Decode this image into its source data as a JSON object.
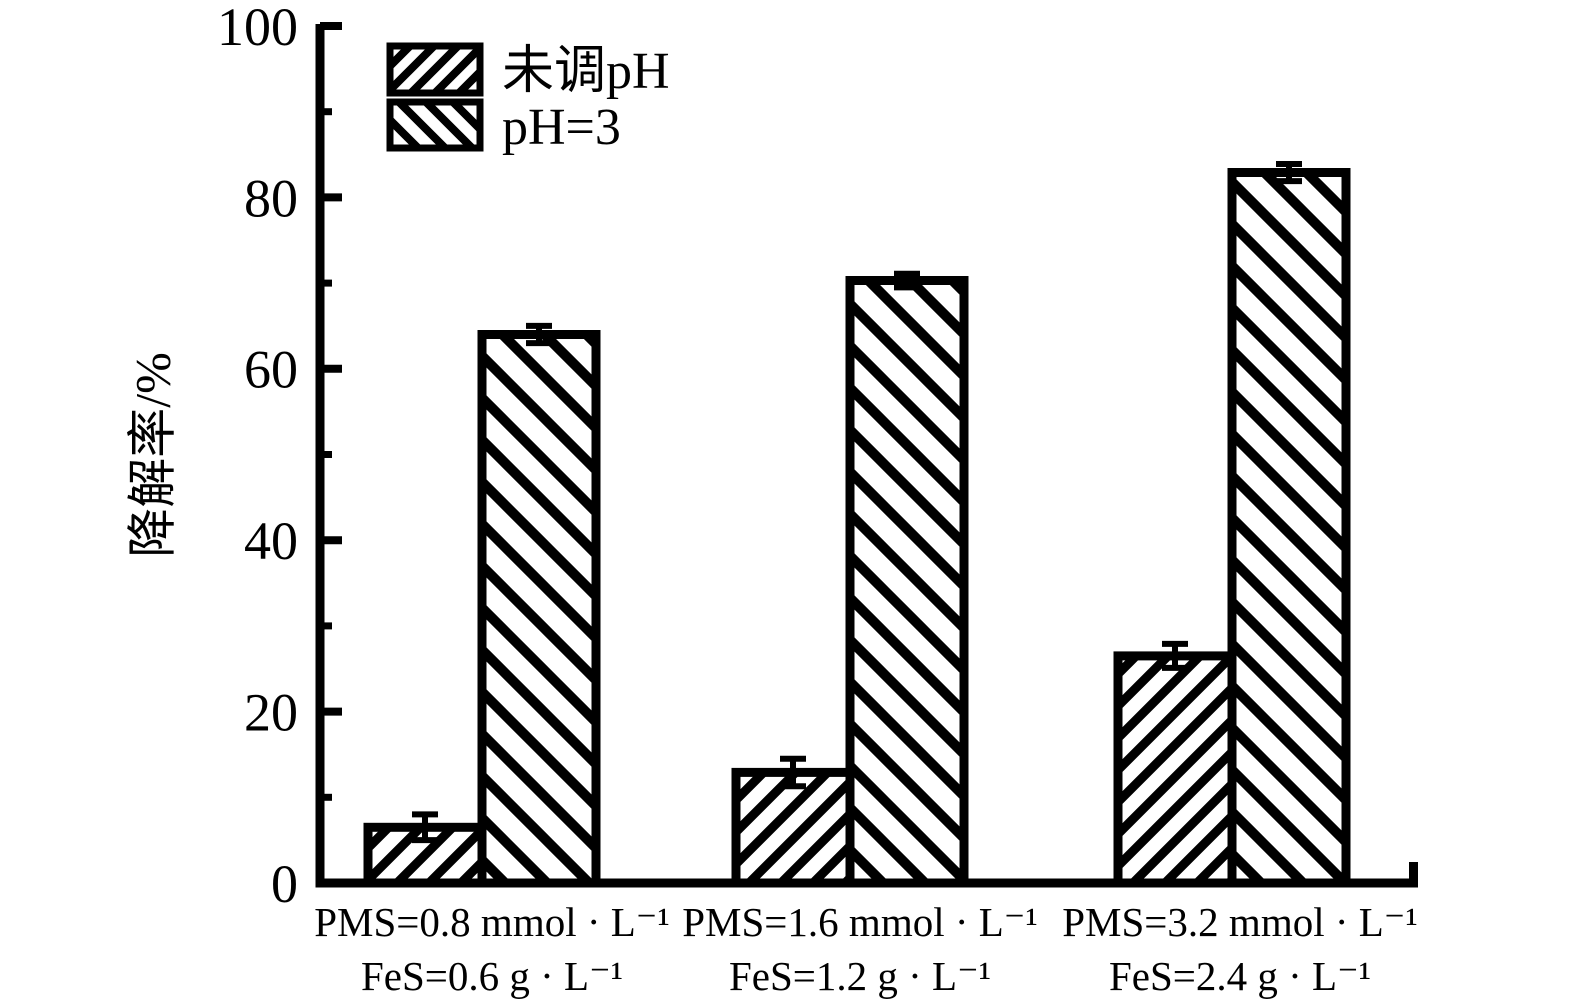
{
  "figure": {
    "background_color": "#ffffff",
    "ink_color": "#000000"
  },
  "chart_data": {
    "type": "bar",
    "ylabel": "降解率/%",
    "ylim": [
      0,
      100
    ],
    "y_major_ticks": [
      0,
      20,
      40,
      60,
      80,
      100
    ],
    "y_minor_ticks": [
      10,
      30,
      50,
      70,
      90
    ],
    "grid": "off",
    "legend_position": "top-left-inside",
    "bar_style": "white-fill-black-hatch-outline",
    "error_bars": "both-directions-caps",
    "groups": [
      {
        "line1": "PMS=0.8 mmol · L⁻¹",
        "line2": "FeS=0.6 g · L⁻¹"
      },
      {
        "line1": "PMS=1.6 mmol · L⁻¹",
        "line2": "FeS=1.2 g · L⁻¹"
      },
      {
        "line1": "PMS=3.2 mmol · L⁻¹",
        "line2": "FeS=2.4 g · L⁻¹"
      }
    ],
    "series": [
      {
        "name": "未调pH",
        "hatch": "forward-diagonal",
        "values": [
          6.5,
          12.9,
          26.5
        ],
        "errors": [
          1.5,
          1.6,
          1.4
        ]
      },
      {
        "name": "pH=3",
        "hatch": "backward-diagonal",
        "values": [
          64.0,
          70.3,
          82.9
        ],
        "errors": [
          1.0,
          0.8,
          1.0
        ]
      }
    ]
  }
}
